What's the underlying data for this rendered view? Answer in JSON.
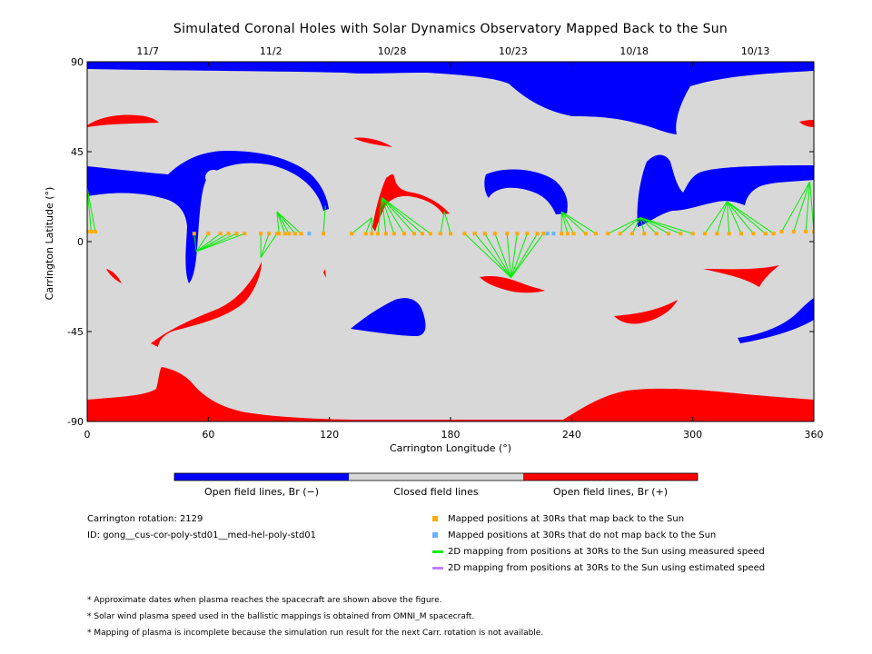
{
  "colors": {
    "open_negative": "#0000ff",
    "closed": "#d8d8d8",
    "open_positive": "#ff0000",
    "mapped": "#ffaa00",
    "unmapped": "#66b3ff",
    "measured_speed": "#00ee00",
    "estimated_speed": "#c080ff"
  },
  "chart_data": {
    "type": "map",
    "title": "Simulated Coronal Holes with Solar Dynamics Observatory Mapped Back to the Sun",
    "xlabel": "Carrington Longitude (°)",
    "ylabel": "Carrington Latitude (°)",
    "xlim": [
      0,
      360
    ],
    "ylim": [
      -90,
      90
    ],
    "x_ticks": [
      0,
      60,
      120,
      180,
      240,
      300,
      360
    ],
    "y_ticks": [
      90,
      45,
      0,
      -45,
      -90
    ],
    "top_date_ticks": [
      {
        "label": "11/7",
        "lon": 30
      },
      {
        "label": "11/2",
        "lon": 91
      },
      {
        "label": "10/28",
        "lon": 151
      },
      {
        "label": "10/23",
        "lon": 211
      },
      {
        "label": "10/18",
        "lon": 271
      },
      {
        "label": "10/13",
        "lon": 331
      }
    ],
    "colorbar": [
      {
        "label": "Open field lines, Br (−)",
        "color": "#0000ff"
      },
      {
        "label": "Closed field lines",
        "color": "#d8d8d8"
      },
      {
        "label": "Open field lines, Br (+)",
        "color": "#ff0000"
      }
    ],
    "footpoint_groups": [
      {
        "points_lon": [
          0,
          2,
          4
        ],
        "points_lat": [
          5,
          5,
          5
        ],
        "foot": [
          0,
          27
        ]
      },
      {
        "points_lon": [
          53,
          60,
          66,
          70,
          74,
          78
        ],
        "points_lat": [
          4,
          4,
          4,
          4,
          4,
          4
        ],
        "foot": [
          54,
          -5
        ]
      },
      {
        "points_lon": [
          86,
          90,
          94
        ],
        "points_lat": [
          4,
          4,
          4
        ],
        "foot": [
          86,
          -8
        ]
      },
      {
        "points_lon": [
          95,
          98,
          100,
          103,
          106
        ],
        "points_lat": [
          4,
          4,
          4,
          4,
          4
        ],
        "foot": [
          94,
          15
        ]
      },
      {
        "points_lon": [
          117
        ],
        "points_lat": [
          4
        ],
        "foot": [
          118,
          18
        ]
      },
      {
        "points_lon": [
          131,
          138,
          141
        ],
        "points_lat": [
          4,
          4,
          4
        ],
        "foot": [
          141,
          12
        ]
      },
      {
        "points_lon": [
          144,
          148,
          152,
          157,
          162,
          166,
          170
        ],
        "points_lat": [
          4,
          4,
          4,
          4,
          4,
          4,
          4
        ],
        "foot": [
          146,
          22
        ]
      },
      {
        "points_lon": [
          175,
          180
        ],
        "points_lat": [
          4,
          4
        ],
        "foot": [
          177,
          15
        ]
      },
      {
        "points_lon": [
          187,
          192,
          197,
          202,
          208,
          213,
          218,
          223,
          226
        ],
        "points_lat": [
          4,
          4,
          4,
          4,
          4,
          4,
          4,
          4,
          4
        ],
        "foot": [
          210,
          -18
        ]
      },
      {
        "points_lon": [
          235,
          238,
          241,
          247,
          252
        ],
        "points_lat": [
          4,
          4,
          4,
          4,
          4
        ],
        "foot": [
          235,
          15
        ]
      },
      {
        "points_lon": [
          258,
          264,
          270,
          276,
          282,
          288,
          294,
          300
        ],
        "points_lat": [
          4,
          4,
          4,
          4,
          4,
          4,
          4,
          4
        ],
        "foot": [
          274,
          12
        ]
      },
      {
        "points_lon": [
          306,
          312,
          318,
          324,
          330,
          336,
          340
        ],
        "points_lat": [
          4,
          4,
          4,
          4,
          4,
          4,
          4
        ],
        "foot": [
          317,
          20
        ]
      },
      {
        "points_lon": [
          344,
          350,
          356,
          360
        ],
        "points_lat": [
          5,
          5,
          5,
          5
        ],
        "foot": [
          358,
          30
        ]
      }
    ],
    "unmapped_points": [
      {
        "lon": 110,
        "lat": 4
      },
      {
        "lon": 228,
        "lat": 4
      },
      {
        "lon": 231,
        "lat": 4
      }
    ]
  },
  "info": {
    "rotation": "Carrington rotation: 2129",
    "id": "ID: gong__cus-cor-poly-std01__med-hel-poly-std01"
  },
  "legend": [
    {
      "label": "Mapped positions at 30Rs that map back to the Sun",
      "kind": "dot",
      "color": "#ffaa00"
    },
    {
      "label": "Mapped positions at 30Rs that do not map back to the Sun",
      "kind": "dot",
      "color": "#66b3ff"
    },
    {
      "label": "2D mapping from positions at 30Rs to the Sun using measured speed",
      "kind": "line",
      "color": "#00ee00"
    },
    {
      "label": "2D mapping from positions at 30Rs to the Sun using estimated speed",
      "kind": "line",
      "color": "#c080ff"
    }
  ],
  "notes": [
    "* Approximate dates when plasma reaches the spacecraft are shown above the figure.",
    "* Solar wind plasma speed used in the ballistic mappings is obtained from OMNI_M spacecraft.",
    "* Mapping of plasma is incomplete because the simulation run result for the next Carr. rotation is not available."
  ]
}
